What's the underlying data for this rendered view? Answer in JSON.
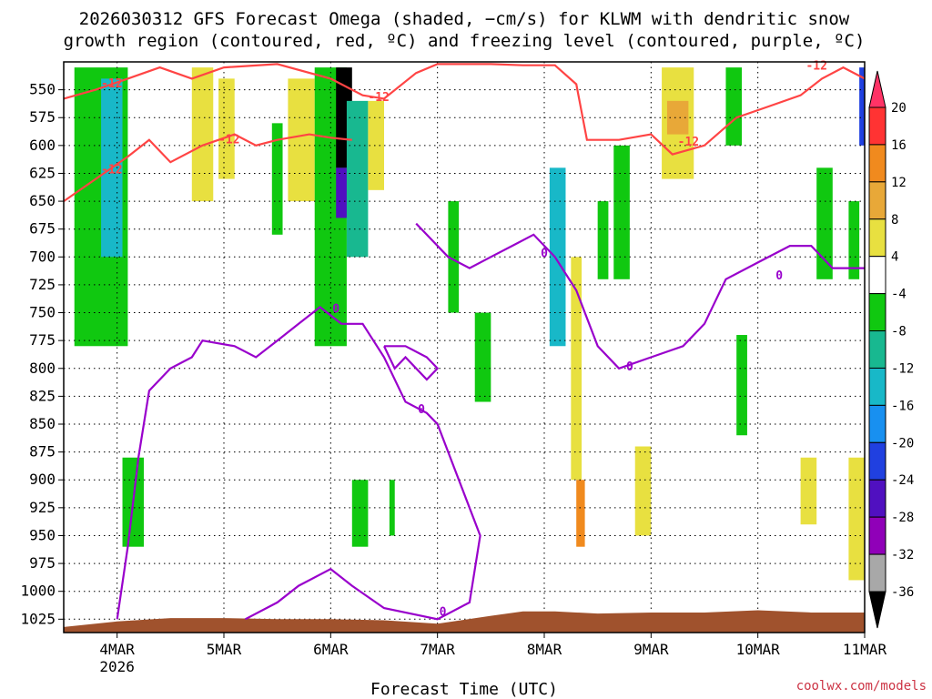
{
  "title_line1": "2026030312 GFS Forecast Omega (shaded, −cm/s) for KLWM with dendritic snow",
  "title_line2": "growth region (contoured, red, ºC) and freezing level (contoured, purple, ºC)",
  "credit": "coolwx.com/models",
  "colors": {
    "snow_growth_contour": "#ff4444",
    "freezing_contour": "#9900cc",
    "terrain": "#a0522d"
  },
  "chart_data": {
    "type": "heatmap",
    "xlabel": "Forecast Time (UTC)",
    "ylabel": "",
    "x_ticks": [
      {
        "label": "4MAR",
        "sub": "2026",
        "t": 0.5
      },
      {
        "label": "5MAR",
        "sub": "",
        "t": 1.5
      },
      {
        "label": "6MAR",
        "sub": "",
        "t": 2.5
      },
      {
        "label": "7MAR",
        "sub": "",
        "t": 3.5
      },
      {
        "label": "8MAR",
        "sub": "",
        "t": 4.5
      },
      {
        "label": "9MAR",
        "sub": "",
        "t": 5.5
      },
      {
        "label": "10MAR",
        "sub": "",
        "t": 6.5
      },
      {
        "label": "11MAR",
        "sub": "",
        "t": 7.5
      }
    ],
    "x_range": [
      0,
      7.5
    ],
    "y_ticks": [
      550,
      575,
      600,
      625,
      650,
      675,
      700,
      725,
      750,
      775,
      800,
      825,
      850,
      875,
      900,
      925,
      950,
      975,
      1000,
      1025
    ],
    "y_range_hpa": [
      525,
      1037
    ],
    "grid": true,
    "colorbar": {
      "labels": [
        "20",
        "16",
        "12",
        "8",
        "4",
        "-4",
        "-8",
        "-12",
        "-16",
        "-20",
        "-24",
        "-28",
        "-32",
        "-36"
      ],
      "colors": [
        "#ff3366",
        "#ff3333",
        "#f08a1e",
        "#e8a838",
        "#e8e040",
        "#ffffff",
        "#10c810",
        "#18b890",
        "#18b8c8",
        "#1890f0",
        "#2040e0",
        "#5010c0",
        "#9000b8",
        "#a8a8a8",
        "#000000"
      ]
    },
    "snow_growth_region_red": {
      "label": "-12",
      "upper": [
        [
          0,
          558
        ],
        [
          0.3,
          550
        ],
        [
          0.6,
          540
        ],
        [
          0.9,
          530
        ],
        [
          1.2,
          540
        ],
        [
          1.5,
          530
        ],
        [
          2.0,
          527
        ],
        [
          2.5,
          540
        ],
        [
          2.8,
          555
        ],
        [
          3.0,
          558
        ],
        [
          3.3,
          535
        ],
        [
          3.5,
          527
        ],
        [
          4.0,
          527
        ],
        [
          4.3,
          528
        ],
        [
          4.6,
          528
        ],
        [
          4.8,
          545
        ],
        [
          4.9,
          595
        ],
        [
          5.2,
          595
        ],
        [
          5.5,
          590
        ],
        [
          5.7,
          608
        ],
        [
          6.0,
          600
        ],
        [
          6.3,
          575
        ],
        [
          6.6,
          565
        ],
        [
          6.9,
          555
        ],
        [
          7.1,
          540
        ],
        [
          7.3,
          530
        ],
        [
          7.5,
          540
        ]
      ],
      "lower": [
        [
          0,
          650
        ],
        [
          0.3,
          630
        ],
        [
          0.6,
          610
        ],
        [
          0.8,
          595
        ],
        [
          1.0,
          615
        ],
        [
          1.3,
          600
        ],
        [
          1.6,
          590
        ],
        [
          1.8,
          600
        ],
        [
          2.0,
          595
        ],
        [
          2.3,
          590
        ],
        [
          2.5,
          593
        ],
        [
          2.7,
          595
        ]
      ]
    },
    "freezing_level_purple": {
      "label": "0",
      "segments": [
        [
          [
            0.5,
            1025
          ],
          [
            0.6,
            960
          ],
          [
            0.7,
            880
          ],
          [
            0.8,
            820
          ],
          [
            1.0,
            800
          ],
          [
            1.2,
            790
          ],
          [
            1.3,
            775
          ],
          [
            1.6,
            780
          ],
          [
            1.8,
            790
          ],
          [
            2.0,
            775
          ],
          [
            2.2,
            760
          ],
          [
            2.4,
            745
          ],
          [
            2.6,
            760
          ],
          [
            2.8,
            760
          ],
          [
            3.0,
            790
          ],
          [
            3.2,
            830
          ],
          [
            3.4,
            840
          ],
          [
            3.5,
            850
          ],
          [
            3.7,
            900
          ],
          [
            3.9,
            950
          ],
          [
            3.8,
            1010
          ],
          [
            3.5,
            1025
          ],
          [
            3.0,
            1015
          ],
          [
            2.7,
            995
          ],
          [
            2.5,
            980
          ],
          [
            2.2,
            995
          ],
          [
            2.0,
            1010
          ],
          [
            1.7,
            1025
          ]
        ],
        [
          [
            3.0,
            780
          ],
          [
            3.2,
            780
          ],
          [
            3.4,
            790
          ],
          [
            3.5,
            800
          ],
          [
            3.4,
            810
          ],
          [
            3.2,
            790
          ],
          [
            3.1,
            800
          ],
          [
            3.0,
            780
          ]
        ],
        [
          [
            3.3,
            670
          ],
          [
            3.6,
            700
          ],
          [
            3.8,
            710
          ],
          [
            4.0,
            700
          ],
          [
            4.2,
            690
          ],
          [
            4.4,
            680
          ],
          [
            4.6,
            700
          ],
          [
            4.8,
            730
          ],
          [
            5.0,
            780
          ],
          [
            5.2,
            800
          ],
          [
            5.5,
            790
          ],
          [
            5.8,
            780
          ],
          [
            6.0,
            760
          ],
          [
            6.2,
            720
          ],
          [
            6.5,
            705
          ],
          [
            6.8,
            690
          ],
          [
            7.0,
            690
          ],
          [
            7.2,
            710
          ],
          [
            7.5,
            710
          ]
        ]
      ]
    },
    "terrain_top_hpa": [
      [
        0,
        1032
      ],
      [
        0.5,
        1027
      ],
      [
        1.0,
        1024
      ],
      [
        1.5,
        1024
      ],
      [
        2.0,
        1025
      ],
      [
        2.5,
        1025
      ],
      [
        3.0,
        1026
      ],
      [
        3.5,
        1029
      ],
      [
        4.0,
        1022
      ],
      [
        4.3,
        1018
      ],
      [
        4.6,
        1018
      ],
      [
        5.0,
        1020
      ],
      [
        5.5,
        1019
      ],
      [
        6.0,
        1019
      ],
      [
        6.5,
        1017
      ],
      [
        7.0,
        1019
      ],
      [
        7.5,
        1019
      ]
    ],
    "omega_cells": [
      {
        "t0": 0.1,
        "t1": 0.6,
        "p0": 530,
        "p1": 780,
        "c": "#10c810"
      },
      {
        "t0": 0.35,
        "t1": 0.55,
        "p0": 540,
        "p1": 700,
        "c": "#18b8c8"
      },
      {
        "t0": 0.55,
        "t1": 0.75,
        "p0": 880,
        "p1": 960,
        "c": "#10c810"
      },
      {
        "t0": 1.2,
        "t1": 1.4,
        "p0": 530,
        "p1": 650,
        "c": "#e8e040"
      },
      {
        "t0": 1.45,
        "t1": 1.6,
        "p0": 540,
        "p1": 630,
        "c": "#e8e040"
      },
      {
        "t0": 1.95,
        "t1": 2.05,
        "p0": 580,
        "p1": 680,
        "c": "#10c810"
      },
      {
        "t0": 2.1,
        "t1": 2.35,
        "p0": 540,
        "p1": 650,
        "c": "#e8e040"
      },
      {
        "t0": 2.35,
        "t1": 2.65,
        "p0": 530,
        "p1": 780,
        "c": "#10c810"
      },
      {
        "t0": 2.55,
        "t1": 2.7,
        "p0": 530,
        "p1": 620,
        "c": "#000000"
      },
      {
        "t0": 2.55,
        "t1": 2.7,
        "p0": 620,
        "p1": 665,
        "c": "#5010c0"
      },
      {
        "t0": 2.65,
        "t1": 2.85,
        "p0": 560,
        "p1": 700,
        "c": "#18b890"
      },
      {
        "t0": 2.85,
        "t1": 3.0,
        "p0": 560,
        "p1": 640,
        "c": "#e8e040"
      },
      {
        "t0": 2.7,
        "t1": 2.85,
        "p0": 900,
        "p1": 960,
        "c": "#10c810"
      },
      {
        "t0": 3.6,
        "t1": 3.7,
        "p0": 650,
        "p1": 750,
        "c": "#10c810"
      },
      {
        "t0": 3.85,
        "t1": 4.0,
        "p0": 750,
        "p1": 830,
        "c": "#10c810"
      },
      {
        "t0": 4.55,
        "t1": 4.7,
        "p0": 620,
        "p1": 780,
        "c": "#18b8c8"
      },
      {
        "t0": 4.75,
        "t1": 4.85,
        "p0": 700,
        "p1": 900,
        "c": "#e8e040"
      },
      {
        "t0": 4.8,
        "t1": 4.88,
        "p0": 900,
        "p1": 960,
        "c": "#f08a1e"
      },
      {
        "t0": 5.0,
        "t1": 5.1,
        "p0": 650,
        "p1": 720,
        "c": "#10c810"
      },
      {
        "t0": 5.15,
        "t1": 5.3,
        "p0": 600,
        "p1": 720,
        "c": "#10c810"
      },
      {
        "t0": 5.35,
        "t1": 5.5,
        "p0": 870,
        "p1": 950,
        "c": "#e8e040"
      },
      {
        "t0": 5.6,
        "t1": 5.9,
        "p0": 530,
        "p1": 630,
        "c": "#e8e040"
      },
      {
        "t0": 5.65,
        "t1": 5.85,
        "p0": 560,
        "p1": 590,
        "c": "#e8a838"
      },
      {
        "t0": 6.3,
        "t1": 6.4,
        "p0": 770,
        "p1": 860,
        "c": "#10c810"
      },
      {
        "t0": 6.9,
        "t1": 7.05,
        "p0": 880,
        "p1": 940,
        "c": "#e8e040"
      },
      {
        "t0": 7.05,
        "t1": 7.2,
        "p0": 620,
        "p1": 720,
        "c": "#10c810"
      },
      {
        "t0": 7.35,
        "t1": 7.45,
        "p0": 650,
        "p1": 720,
        "c": "#10c810"
      },
      {
        "t0": 7.35,
        "t1": 7.5,
        "p0": 880,
        "p1": 990,
        "c": "#e8e040"
      },
      {
        "t0": 7.45,
        "t1": 7.5,
        "p0": 530,
        "p1": 600,
        "c": "#2040e0"
      },
      {
        "t0": 6.2,
        "t1": 6.35,
        "p0": 530,
        "p1": 600,
        "c": "#10c810"
      },
      {
        "t0": 3.05,
        "t1": 3.1,
        "p0": 900,
        "p1": 950,
        "c": "#10c810"
      }
    ]
  }
}
